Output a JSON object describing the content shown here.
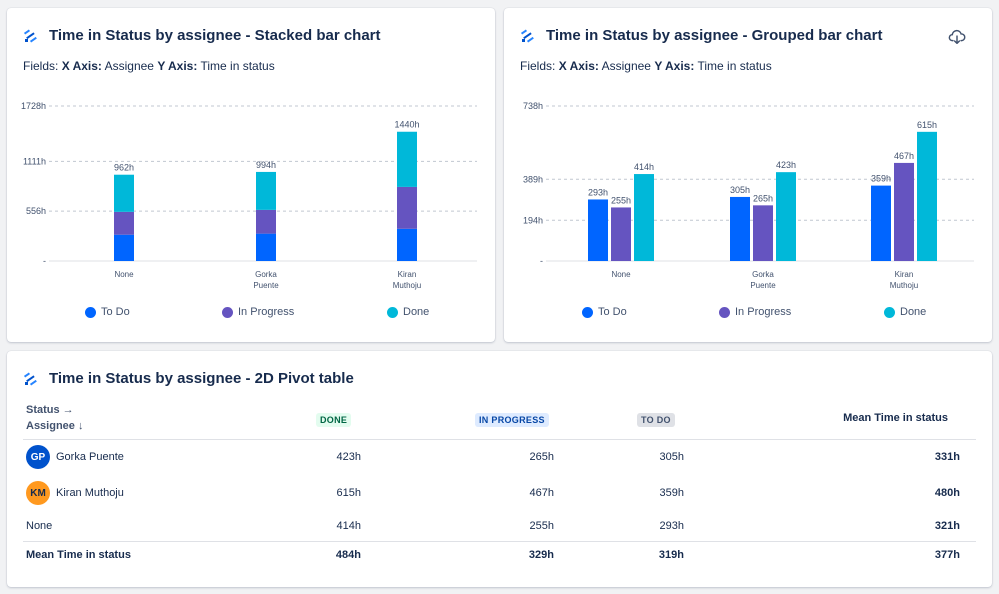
{
  "stacked": {
    "title": "Time in Status by assignee - Stacked bar chart",
    "fields_label": "Fields:",
    "x_axis_label": "X Axis:",
    "x_axis_value": "Assignee",
    "y_axis_label": "Y Axis:",
    "y_axis_value": "Time in status"
  },
  "grouped": {
    "title": "Time in Status by assignee - Grouped bar chart",
    "fields_label": "Fields:",
    "x_axis_label": "X Axis:",
    "x_axis_value": "Assignee",
    "y_axis_label": "Y Axis:",
    "y_axis_value": "Time in status",
    "download_icon": "cloud-download-icon"
  },
  "legend": [
    {
      "label": "To Do",
      "color": "#0065ff"
    },
    {
      "label": "In Progress",
      "color": "#6554c0"
    },
    {
      "label": "Done",
      "color": "#00b8d9"
    }
  ],
  "chart_data": [
    {
      "type": "bar",
      "stacked": true,
      "title": "Time in Status by assignee - Stacked bar chart",
      "xlabel": "Assignee",
      "ylabel": "Time in status",
      "categories": [
        [
          "None"
        ],
        [
          "Gorka",
          "Puente"
        ],
        [
          "Kiran",
          "Muthoju"
        ]
      ],
      "series": [
        {
          "name": "To Do",
          "values": [
            293,
            305,
            359
          ]
        },
        {
          "name": "In Progress",
          "values": [
            255,
            265,
            467
          ]
        },
        {
          "name": "Done",
          "values": [
            414,
            423,
            615
          ]
        }
      ],
      "totals": [
        "962h",
        "994h",
        "1440h"
      ],
      "yticks": [
        "-",
        "556h",
        "1111h",
        "1728h"
      ],
      "ylim": [
        0,
        1728
      ]
    },
    {
      "type": "bar",
      "stacked": false,
      "title": "Time in Status by assignee - Grouped bar chart",
      "xlabel": "Assignee",
      "ylabel": "Time in status",
      "categories": [
        [
          "None"
        ],
        [
          "Gorka",
          "Puente"
        ],
        [
          "Kiran",
          "Muthoju"
        ]
      ],
      "series": [
        {
          "name": "To Do",
          "values": [
            293,
            305,
            359
          ],
          "labels": [
            "293h",
            "305h",
            "359h"
          ]
        },
        {
          "name": "In Progress",
          "values": [
            255,
            265,
            467
          ],
          "labels": [
            "255h",
            "265h",
            "467h"
          ]
        },
        {
          "name": "Done",
          "values": [
            414,
            423,
            615
          ],
          "labels": [
            "414h",
            "423h",
            "615h"
          ]
        }
      ],
      "yticks": [
        "-",
        "194h",
        "389h",
        "738h"
      ],
      "ytick_values": [
        0,
        194,
        389,
        738
      ],
      "ylim": [
        0,
        738
      ]
    }
  ],
  "pivot": {
    "title": "Time in Status by assignee - 2D Pivot table",
    "status_header": "Status →",
    "assignee_header": "Assignee ↓",
    "col_done": "DONE",
    "col_progress": "IN PROGRESS",
    "col_todo": "TO DO",
    "col_mean": "Mean Time in status",
    "rows": [
      {
        "initials": "GP",
        "avatar_color": "#0052cc",
        "name": "Gorka Puente",
        "done": "423h",
        "progress": "265h",
        "todo": "305h",
        "mean": "331h"
      },
      {
        "initials": "KM",
        "avatar_color": "#ff991f",
        "name": "Kiran Muthoju",
        "done": "615h",
        "progress": "467h",
        "todo": "359h",
        "mean": "480h"
      },
      {
        "initials": "",
        "avatar_color": "",
        "name": "None",
        "done": "414h",
        "progress": "255h",
        "todo": "293h",
        "mean": "321h"
      }
    ],
    "footer": {
      "name": "Mean Time in status",
      "done": "484h",
      "progress": "329h",
      "todo": "319h",
      "mean": "377h"
    }
  }
}
